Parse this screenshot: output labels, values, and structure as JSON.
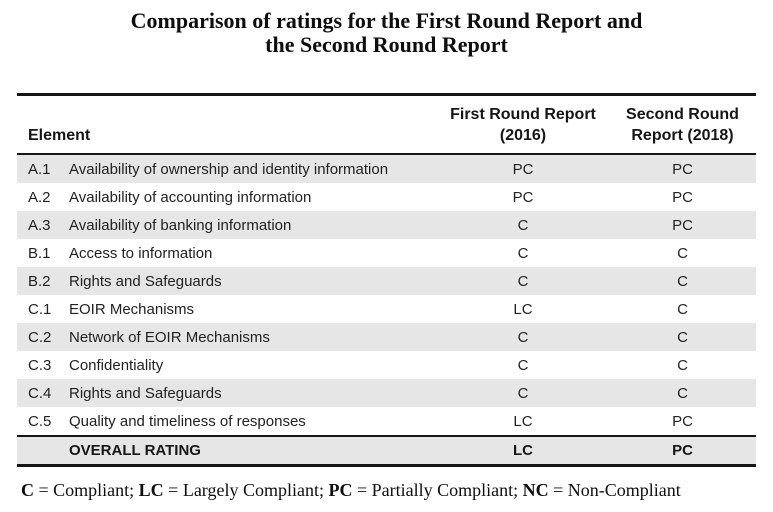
{
  "title": {
    "line1": "Comparison of ratings for the First Round Report and",
    "line2": "the Second Round Report"
  },
  "table": {
    "header": {
      "element": "Element",
      "first_line1": "First Round Report",
      "first_line2": "(2016)",
      "second_line1": "Second Round",
      "second_line2": "Report (2018)"
    },
    "rows": [
      {
        "code": "A.1",
        "element": "Availability of ownership and identity information",
        "first": "PC",
        "second": "PC"
      },
      {
        "code": "A.2",
        "element": "Availability of accounting information",
        "first": "PC",
        "second": "PC"
      },
      {
        "code": "A.3",
        "element": "Availability of banking information",
        "first": "C",
        "second": "PC"
      },
      {
        "code": "B.1",
        "element": "Access to information",
        "first": "C",
        "second": "C"
      },
      {
        "code": "B.2",
        "element": "Rights and Safeguards",
        "first": "C",
        "second": "C"
      },
      {
        "code": "C.1",
        "element": "EOIR Mechanisms",
        "first": "LC",
        "second": "C"
      },
      {
        "code": "C.2",
        "element": "Network of EOIR Mechanisms",
        "first": "C",
        "second": "C"
      },
      {
        "code": "C.3",
        "element": "Confidentiality",
        "first": "C",
        "second": "C"
      },
      {
        "code": "C.4",
        "element": "Rights and Safeguards",
        "first": "C",
        "second": "C"
      },
      {
        "code": "C.5",
        "element": "Quality and timeliness of responses",
        "first": "LC",
        "second": "PC"
      }
    ],
    "overall": {
      "label": "OVERALL RATING",
      "first": "LC",
      "second": "PC"
    }
  },
  "legend": {
    "c_abbr": "C",
    "c_text": " = Compliant; ",
    "lc_abbr": "LC",
    "lc_text": " = Largely Compliant; ",
    "pc_abbr": "PC",
    "pc_text": " = Partially Compliant; ",
    "nc_abbr": "NC",
    "nc_text": " = Non-Compliant"
  },
  "colors": {
    "row_shade": "#e6e6e6",
    "border": "#161616",
    "text": "#222222"
  }
}
